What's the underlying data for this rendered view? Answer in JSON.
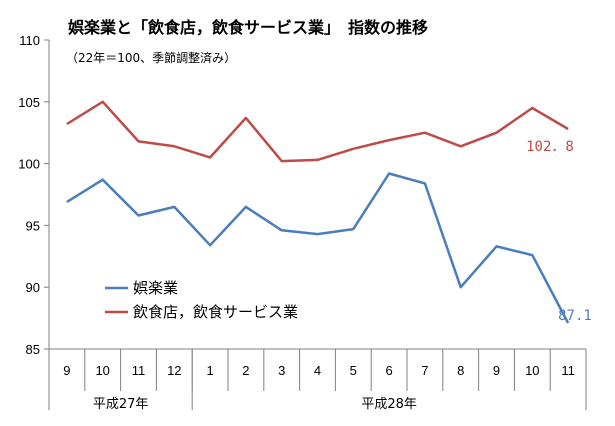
{
  "colors": {
    "series1": "#4a7ebb",
    "series2": "#be4b48",
    "axis": "#808080"
  },
  "chart_data": {
    "type": "line",
    "title": "娯楽業と「飲食店，飲食サービス業」　指数の推移",
    "subtitle": "（22年＝100、季節調整済み）",
    "categories": [
      "9",
      "10",
      "11",
      "12",
      "1",
      "2",
      "3",
      "4",
      "5",
      "6",
      "7",
      "8",
      "9",
      "10",
      "11"
    ],
    "category_groups": [
      {
        "label": "平成27年",
        "start": 0,
        "end": 4
      },
      {
        "label": "平成28年",
        "start": 4,
        "end": 15
      }
    ],
    "ylim": [
      85,
      110
    ],
    "yticks": [
      "85",
      "90",
      "95",
      "100",
      "105",
      "110"
    ],
    "series": [
      {
        "name": "娯楽業",
        "values": [
          96.9,
          98.7,
          95.8,
          96.5,
          93.4,
          96.5,
          94.6,
          94.3,
          94.7,
          99.2,
          98.4,
          90.0,
          93.3,
          92.6,
          87.1
        ],
        "end_label": "87.1"
      },
      {
        "name": "飲食店，飲食サービス業",
        "values": [
          103.2,
          105.0,
          101.8,
          101.4,
          100.5,
          103.7,
          100.2,
          100.3,
          101.2,
          101.9,
          102.5,
          101.4,
          102.5,
          104.5,
          102.8
        ],
        "end_label": "102．8"
      }
    ],
    "legend_position": "lower-left",
    "grid": false
  }
}
